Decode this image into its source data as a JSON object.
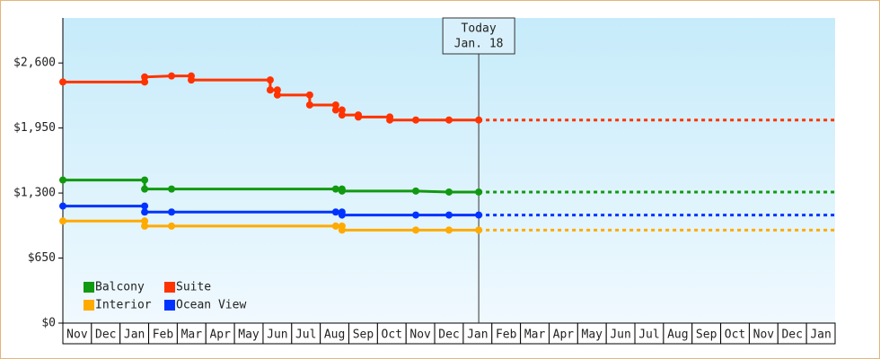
{
  "chart_data": {
    "type": "line",
    "series": [
      {
        "name": "Balcony",
        "color": "#119911",
        "x": [
          0,
          2.86,
          2.86,
          3.8,
          9.54,
          9.76,
          9.76,
          12.34,
          13.5,
          14.54
        ],
        "values": [
          1430,
          1430,
          1340,
          1340,
          1340,
          1340,
          1320,
          1320,
          1310,
          1310
        ]
      },
      {
        "name": "Suite",
        "color": "#ff3300",
        "x": [
          0,
          2.86,
          2.86,
          3.8,
          4.49,
          4.49,
          7.25,
          7.25,
          7.5,
          7.5,
          8.63,
          8.63,
          9.54,
          9.54,
          9.76,
          9.76,
          10.33,
          10.33,
          11.43,
          11.43,
          12.34,
          13.5,
          14.54
        ],
        "values": [
          2410,
          2410,
          2460,
          2470,
          2470,
          2430,
          2430,
          2330,
          2330,
          2280,
          2280,
          2180,
          2180,
          2130,
          2130,
          2080,
          2080,
          2060,
          2060,
          2030,
          2030,
          2030,
          2030
        ]
      },
      {
        "name": "Interior",
        "color": "#ffaa00",
        "x": [
          0,
          2.86,
          2.86,
          3.8,
          9.54,
          9.76,
          9.76,
          12.34,
          13.5,
          14.54
        ],
        "values": [
          1020,
          1020,
          970,
          970,
          970,
          970,
          930,
          930,
          930,
          930
        ]
      },
      {
        "name": "Ocean View",
        "color": "#0033ff",
        "x": [
          0,
          2.86,
          2.86,
          3.8,
          9.54,
          9.76,
          9.76,
          12.34,
          13.5,
          14.54
        ],
        "values": [
          1170,
          1170,
          1110,
          1110,
          1110,
          1110,
          1080,
          1080,
          1080,
          1080
        ]
      }
    ],
    "ylim": [
      0,
      3050
    ],
    "yticks": [
      {
        "value": 0,
        "label": "$0"
      },
      {
        "value": 650,
        "label": "$650"
      },
      {
        "value": 1300,
        "label": "$1,300"
      },
      {
        "value": 1950,
        "label": "$1,950"
      },
      {
        "value": 2600,
        "label": "$2,600"
      }
    ],
    "xlim": [
      0,
      27
    ],
    "xticks": [
      {
        "value": 0.5,
        "label": "Nov"
      },
      {
        "value": 1.5,
        "label": "Dec"
      },
      {
        "value": 2.5,
        "label": "Jan"
      },
      {
        "value": 3.5,
        "label": "Feb"
      },
      {
        "value": 4.5,
        "label": "Mar"
      },
      {
        "value": 5.5,
        "label": "Apr"
      },
      {
        "value": 6.5,
        "label": "May"
      },
      {
        "value": 7.5,
        "label": "Jun"
      },
      {
        "value": 8.5,
        "label": "Jul"
      },
      {
        "value": 9.5,
        "label": "Aug"
      },
      {
        "value": 10.5,
        "label": "Sep"
      },
      {
        "value": 11.5,
        "label": "Oct"
      },
      {
        "value": 12.5,
        "label": "Nov"
      },
      {
        "value": 13.5,
        "label": "Dec"
      },
      {
        "value": 14.5,
        "label": "Jan"
      },
      {
        "value": 15.5,
        "label": "Feb"
      },
      {
        "value": 16.5,
        "label": "Mar"
      },
      {
        "value": 17.5,
        "label": "Apr"
      },
      {
        "value": 18.5,
        "label": "May"
      },
      {
        "value": 19.5,
        "label": "Jun"
      },
      {
        "value": 20.5,
        "label": "Jul"
      },
      {
        "value": 21.5,
        "label": "Aug"
      },
      {
        "value": 22.5,
        "label": "Sep"
      },
      {
        "value": 23.5,
        "label": "Oct"
      },
      {
        "value": 24.5,
        "label": "Nov"
      },
      {
        "value": 25.5,
        "label": "Dec"
      },
      {
        "value": 26.5,
        "label": "Jan"
      }
    ],
    "annotation": {
      "x": 14.54,
      "lines": [
        "Today",
        "Jan. 18"
      ]
    }
  }
}
